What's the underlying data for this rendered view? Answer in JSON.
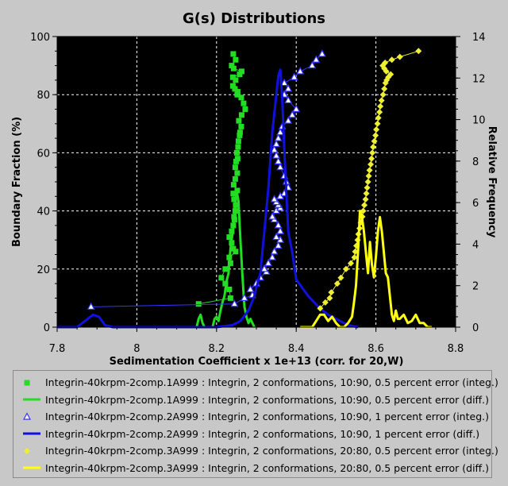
{
  "chart_data": {
    "type": "line",
    "title": "G(s) Distributions",
    "xlabel": "Sedimentation Coefficient x 1e+13 (corr. for 20,W)",
    "ylabel": "Boundary Fraction (%)",
    "y2label": "Relative Frequency",
    "xlim": [
      7.8,
      8.8
    ],
    "ylim": [
      0,
      100
    ],
    "y2lim": [
      0,
      14
    ],
    "xticks": [
      "7.8",
      "8",
      "8.2",
      "8.4",
      "8.6",
      "8.8"
    ],
    "yticks": [
      "0",
      "20",
      "40",
      "60",
      "80",
      "100"
    ],
    "y2ticks": [
      "0",
      "2",
      "4",
      "6",
      "8",
      "10",
      "12",
      "14"
    ],
    "grid": true,
    "legend_position": "bottom",
    "series": [
      {
        "name": "Integrin-40krpm-2comp.1A999 : Integrin, 2 conformations, 10:90, 0.5 percent error (integ.)",
        "kind": "integ",
        "axis": "left",
        "color": "#22dd22",
        "marker": "square",
        "x": [
          8.155,
          8.235,
          8.232,
          8.222,
          8.212,
          8.222,
          8.235,
          8.232,
          8.248,
          8.242,
          8.238,
          8.232,
          8.238,
          8.242,
          8.245,
          8.244,
          8.247,
          8.248,
          8.244,
          8.242,
          8.252,
          8.243,
          8.247,
          8.252,
          8.247,
          8.249,
          8.253,
          8.251,
          8.254,
          8.255,
          8.258,
          8.259,
          8.262,
          8.256,
          8.263,
          8.272,
          8.268,
          8.262,
          8.252,
          8.253,
          8.246,
          8.241,
          8.248,
          8.241,
          8.258,
          8.263,
          8.243,
          8.238,
          8.248,
          8.242
        ],
        "y": [
          8,
          10,
          13,
          15,
          17,
          20,
          22,
          24,
          26,
          27,
          29,
          31,
          33,
          35,
          37,
          38,
          40,
          42,
          44,
          46,
          47,
          49,
          51,
          53,
          55,
          57,
          58,
          60,
          62,
          64,
          66,
          67,
          69,
          71,
          73,
          75,
          77,
          79,
          80,
          81,
          82,
          83,
          85,
          86,
          87,
          88,
          89,
          90,
          92,
          94
        ]
      },
      {
        "name": "Integrin-40krpm-2comp.1A999 : Integrin, 2 conformations, 10:90, 0.5 percent error (diff.)",
        "kind": "diff",
        "axis": "right",
        "color": "#22dd22",
        "marker": "none",
        "x": [
          8.15,
          8.155,
          8.16,
          8.165,
          8.17,
          8.19,
          8.195,
          8.2,
          8.205,
          8.21,
          8.215,
          8.22,
          8.225,
          8.23,
          8.235,
          8.24,
          8.245,
          8.25,
          8.255,
          8.26,
          8.265,
          8.27,
          8.275,
          8.28,
          8.285,
          8.29,
          8.295
        ],
        "y": [
          0,
          0.4,
          0.6,
          0.2,
          0,
          0,
          0.4,
          0.5,
          0.3,
          0.8,
          1.2,
          1.5,
          2.2,
          2.6,
          3.8,
          4.5,
          5.2,
          6.6,
          6.1,
          4.2,
          2.5,
          1.0,
          0.5,
          0.2,
          0.4,
          0.2,
          0
        ]
      },
      {
        "name": "Integrin-40krpm-2comp.2A999 : Integrin, 2 conformations, 10:90, 1 percent error (integ.)",
        "kind": "integ",
        "axis": "left",
        "color": "#3333ff",
        "marker": "triangle",
        "x": [
          7.885,
          8.245,
          8.27,
          8.29,
          8.285,
          8.3,
          8.31,
          8.325,
          8.32,
          8.33,
          8.34,
          8.345,
          8.355,
          8.36,
          8.35,
          8.36,
          8.355,
          8.345,
          8.34,
          8.35,
          8.36,
          8.355,
          8.35,
          8.345,
          8.36,
          8.37,
          8.38,
          8.375,
          8.37,
          8.36,
          8.355,
          8.35,
          8.345,
          8.35,
          8.355,
          8.36,
          8.365,
          8.38,
          8.39,
          8.4,
          8.38,
          8.37,
          8.38,
          8.37,
          8.395,
          8.41,
          8.44,
          8.45,
          8.465
        ],
        "y": [
          7,
          8,
          10,
          11,
          13,
          15,
          17,
          19,
          20,
          22,
          24,
          26,
          28,
          30,
          31,
          33,
          35,
          37,
          38,
          40,
          41,
          42,
          43,
          44,
          45,
          46,
          48,
          50,
          52,
          55,
          57,
          59,
          61,
          63,
          65,
          67,
          69,
          71,
          73,
          75,
          78,
          80,
          82,
          84,
          86,
          88,
          90,
          92,
          94
        ]
      },
      {
        "name": "Integrin-40krpm-2comp.2A999 : Integrin, 2 conformations, 10:90, 1 percent error (diff.)",
        "kind": "diff",
        "axis": "right",
        "color": "#1111dd",
        "marker": "none",
        "x": [
          7.8,
          7.85,
          7.87,
          7.89,
          7.905,
          7.92,
          7.94,
          8.0,
          8.1,
          8.2,
          8.24,
          8.26,
          8.28,
          8.295,
          8.3,
          8.31,
          8.32,
          8.33,
          8.34,
          8.35,
          8.355,
          8.36,
          8.365,
          8.37,
          8.375,
          8.38,
          8.39,
          8.4,
          8.43,
          8.46,
          8.48,
          8.51,
          8.53,
          8.555
        ],
        "y": [
          0,
          0,
          0.3,
          0.6,
          0.5,
          0.1,
          0,
          0,
          0,
          0,
          0.1,
          0.3,
          0.8,
          1.5,
          1.9,
          2.6,
          4.6,
          6.7,
          9.4,
          11.2,
          12.1,
          12.4,
          11.0,
          8.6,
          6.6,
          4.6,
          3.6,
          2.3,
          1.5,
          0.9,
          0.6,
          0.3,
          0.1,
          0
        ]
      },
      {
        "name": "Integrin-40krpm-2comp.3A999 : Integrin, 2 conformations, 20:80, 0.5 percent error (integ.)",
        "kind": "integ",
        "axis": "left",
        "color": "#eeee33",
        "marker": "diamond",
        "x": [
          8.46,
          8.473,
          8.484,
          8.488,
          8.503,
          8.512,
          8.525,
          8.537,
          8.546,
          8.548,
          8.551,
          8.554,
          8.556,
          8.559,
          8.562,
          8.566,
          8.568,
          8.571,
          8.574,
          8.576,
          8.578,
          8.58,
          8.582,
          8.584,
          8.587,
          8.589,
          8.591,
          8.593,
          8.596,
          8.599,
          8.601,
          8.604,
          8.606,
          8.609,
          8.611,
          8.614,
          8.618,
          8.621,
          8.624,
          8.627,
          8.631,
          8.637,
          8.626,
          8.621,
          8.617,
          8.623,
          8.64,
          8.66,
          8.707
        ],
        "y": [
          6.5,
          8.5,
          10,
          12,
          15,
          17,
          20,
          22,
          24,
          26,
          28,
          30,
          32,
          34,
          36,
          38,
          40,
          42,
          44,
          46,
          48,
          50,
          52,
          54,
          56,
          58,
          60,
          62,
          64,
          66,
          68,
          70,
          72,
          74,
          76,
          78,
          80,
          82,
          84,
          85,
          86,
          87,
          88,
          89,
          90,
          91,
          92,
          93,
          95
        ]
      },
      {
        "name": "Integrin-40krpm-2comp.3A999 : Integrin, 2 conformations, 20:80, 0.5 percent error (diff.)",
        "kind": "diff",
        "axis": "right",
        "color": "#ffff11",
        "marker": "none",
        "x": [
          8.41,
          8.44,
          8.45,
          8.46,
          8.47,
          8.48,
          8.49,
          8.5,
          8.51,
          8.52,
          8.53,
          8.54,
          8.545,
          8.55,
          8.555,
          8.56,
          8.565,
          8.57,
          8.575,
          8.58,
          8.585,
          8.59,
          8.595,
          8.6,
          8.605,
          8.61,
          8.615,
          8.62,
          8.625,
          8.63,
          8.635,
          8.64,
          8.645,
          8.65,
          8.655,
          8.66,
          8.67,
          8.68,
          8.69,
          8.7,
          8.71,
          8.72,
          8.73,
          8.74
        ],
        "y": [
          0,
          0,
          0.3,
          0.6,
          0.6,
          0.3,
          0.5,
          0.2,
          0,
          0,
          0.2,
          0.5,
          1.2,
          2.0,
          3.6,
          5.6,
          5.3,
          4.6,
          3.6,
          2.6,
          4.1,
          3.0,
          2.4,
          3.4,
          4.6,
          5.3,
          4.6,
          3.6,
          2.6,
          2.4,
          1.5,
          0.6,
          0.3,
          0.8,
          0.4,
          0.4,
          0.6,
          0.2,
          0.3,
          0.6,
          0.2,
          0.2,
          0,
          0
        ]
      }
    ]
  }
}
